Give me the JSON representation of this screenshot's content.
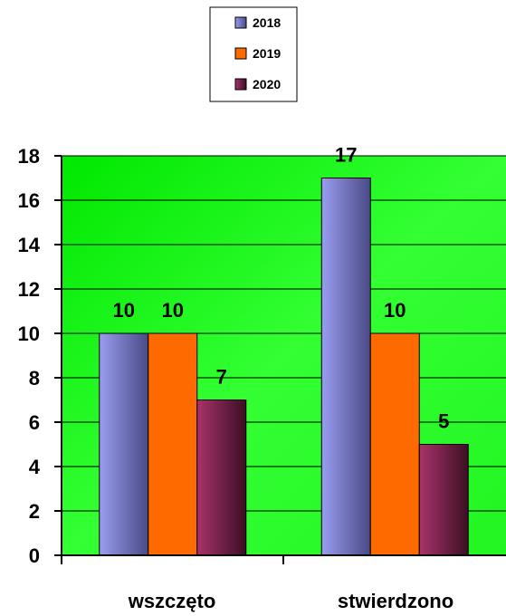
{
  "chart_data": {
    "type": "bar",
    "categories": [
      "wszczęto",
      "stwierdzono"
    ],
    "series": [
      {
        "name": "2018",
        "values": [
          10,
          17
        ],
        "color": "#9a9cf0",
        "shade": "#4a4a86"
      },
      {
        "name": "2019",
        "values": [
          10,
          10
        ],
        "color": "#ff6a00",
        "shade": "#ff6a00"
      },
      {
        "name": "2020",
        "values": [
          7,
          5
        ],
        "color": "#a8336a",
        "shade": "#3c0f24"
      }
    ],
    "ylim": [
      0,
      18
    ],
    "yticks": [
      0,
      2,
      4,
      6,
      8,
      10,
      12,
      14,
      16,
      18
    ],
    "grid": true,
    "legend": "top-center",
    "plot_background": "#00ff00",
    "value_labels": [
      "10",
      "17",
      "10",
      "10",
      "7",
      "5"
    ]
  }
}
